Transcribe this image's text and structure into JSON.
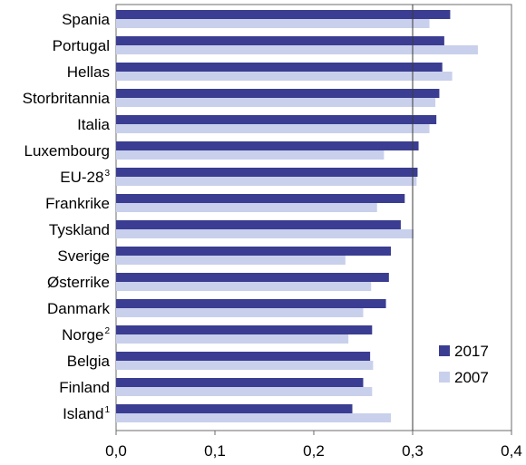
{
  "chart_data": {
    "type": "bar",
    "orientation": "horizontal",
    "categories": [
      {
        "label": "Spania",
        "sup": ""
      },
      {
        "label": "Portugal",
        "sup": ""
      },
      {
        "label": "Hellas",
        "sup": ""
      },
      {
        "label": "Storbritannia",
        "sup": ""
      },
      {
        "label": "Italia",
        "sup": ""
      },
      {
        "label": "Luxembourg",
        "sup": ""
      },
      {
        "label": "EU-28",
        "sup": "3"
      },
      {
        "label": "Frankrike",
        "sup": ""
      },
      {
        "label": "Tyskland",
        "sup": ""
      },
      {
        "label": "Sverige",
        "sup": ""
      },
      {
        "label": "Østerrike",
        "sup": ""
      },
      {
        "label": "Danmark",
        "sup": ""
      },
      {
        "label": "Norge",
        "sup": "2"
      },
      {
        "label": "Belgia",
        "sup": ""
      },
      {
        "label": "Finland",
        "sup": ""
      },
      {
        "label": "Island",
        "sup": "1"
      }
    ],
    "series": [
      {
        "name": "2017",
        "color": "#3a3d91",
        "values": [
          0.338,
          0.332,
          0.33,
          0.327,
          0.324,
          0.306,
          0.305,
          0.292,
          0.288,
          0.278,
          0.276,
          0.273,
          0.259,
          0.257,
          0.25,
          0.239
        ]
      },
      {
        "name": "2007",
        "color": "#c9d0ec",
        "values": [
          0.317,
          0.366,
          0.34,
          0.323,
          0.317,
          0.271,
          0.304,
          0.264,
          0.301,
          0.232,
          0.258,
          0.25,
          0.235,
          0.26,
          0.259,
          0.278
        ]
      }
    ],
    "x_ticks": [
      "0,0",
      "0,1",
      "0,2",
      "0,3",
      "0,4"
    ],
    "xlim": [
      0,
      0.4
    ],
    "reference_line": 0.3,
    "legend_position": "bottom-right",
    "title": "",
    "xlabel": "",
    "ylabel": ""
  }
}
